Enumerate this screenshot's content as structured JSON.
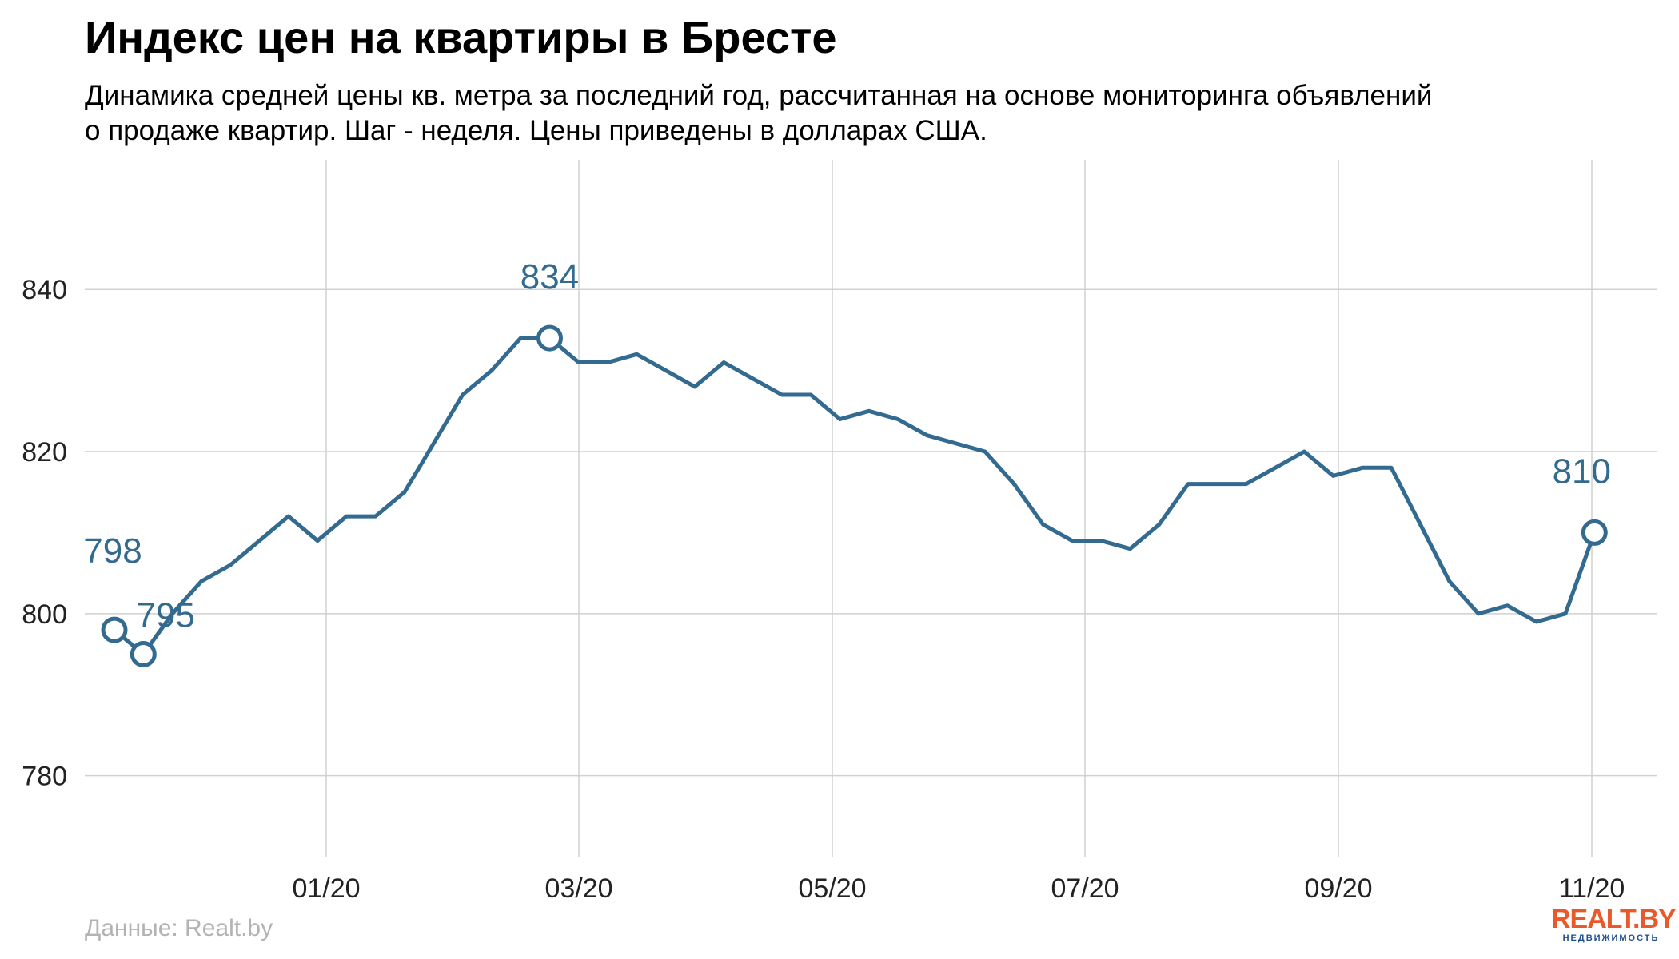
{
  "header": {
    "title": "Индекс цен на квартиры в Бресте",
    "subtitle": "Динамика средней цены кв. метра за последний год, рассчитанная на основе мониторинга объявлений о продаже квартир. Шаг - неделя. Цены приведены в долларах США."
  },
  "footer": {
    "source": "Данные: Realt.by",
    "logo_text": "REALT.BY",
    "logo_sub": "НЕДВИЖИМОСТЬ"
  },
  "colors": {
    "line": "#336a90",
    "grid": "#d0d0d0",
    "source": "#b3b3b3",
    "logo": "#e85a2c"
  },
  "chart_data": {
    "type": "line",
    "title": "Индекс цен на квартиры в Бресте",
    "xlabel": "",
    "ylabel": "",
    "ylim": [
      770,
      856
    ],
    "grid": true,
    "x_ticks": [
      "01/20",
      "03/20",
      "05/20",
      "07/20",
      "09/20",
      "11/20"
    ],
    "y_ticks": [
      780,
      800,
      820,
      840
    ],
    "series": [
      {
        "values": [
          798,
          795,
          800,
          804,
          806,
          809,
          812,
          809,
          812,
          812,
          815,
          821,
          827,
          830,
          834,
          834,
          831,
          831,
          832,
          830,
          828,
          831,
          829,
          827,
          827,
          824,
          825,
          824,
          822,
          821,
          820,
          816,
          811,
          809,
          809,
          808,
          811,
          816,
          816,
          816,
          818,
          820,
          817,
          818,
          818,
          811,
          804,
          800,
          801,
          799,
          800,
          810
        ]
      }
    ],
    "highlighted_points": [
      {
        "index": 0,
        "label": "798"
      },
      {
        "index": 1,
        "label": "795"
      },
      {
        "index": 15,
        "label": "834"
      },
      {
        "index": 51,
        "label": "810"
      }
    ]
  }
}
